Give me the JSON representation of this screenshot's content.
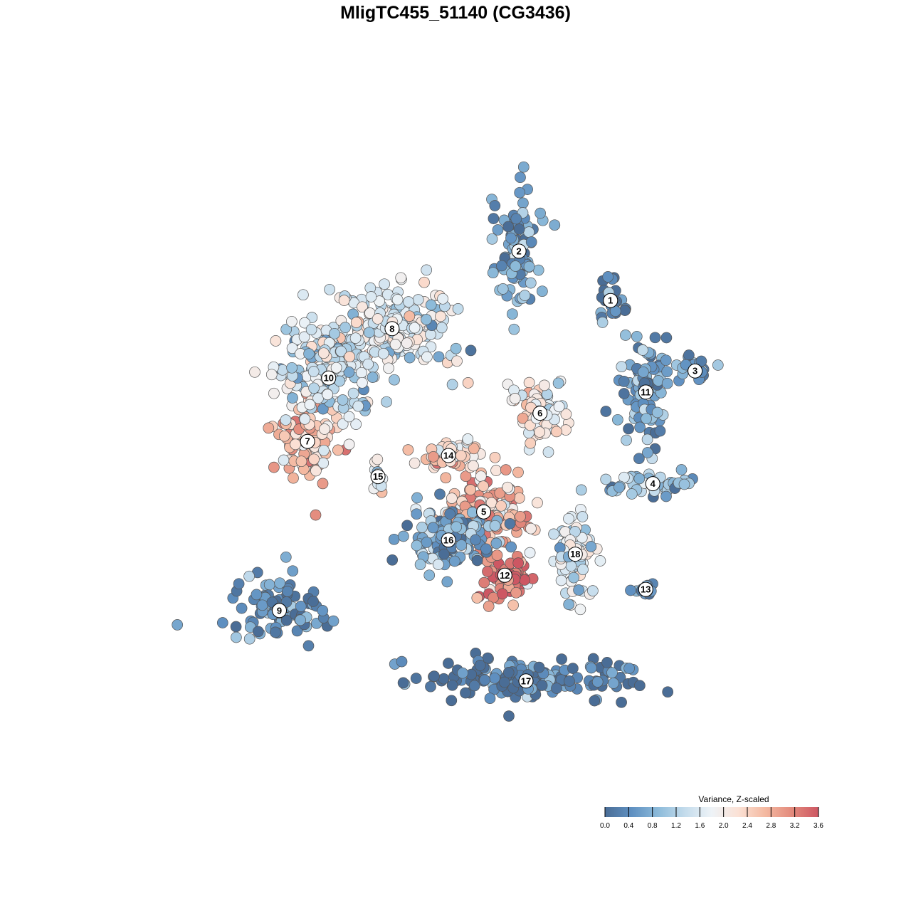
{
  "chart_data": {
    "type": "scatter",
    "title": "MligTC455_51140 (CG3436)",
    "xlabel": "",
    "ylabel": "",
    "grid": false,
    "axes_shown": false,
    "legend": {
      "title": "Variance, Z-scaled",
      "placement": "bottom-right",
      "range": [
        0.0,
        3.6
      ],
      "ticks": [
        "0.0",
        "0.4",
        "0.8",
        "1.2",
        "1.6",
        "2.0",
        "2.4",
        "2.8",
        "3.2",
        "3.6"
      ],
      "colors": [
        "#4a6d96",
        "#5f90c1",
        "#8dbbda",
        "#c4dcec",
        "#eef3f7",
        "#fbe1d5",
        "#f4b9a1",
        "#e38a7c",
        "#cd5763"
      ]
    },
    "clusters": [
      {
        "label": "1",
        "x": 0.72,
        "y": 0.72,
        "mean": 0.3
      },
      {
        "label": "2",
        "x": 0.59,
        "y": 0.79,
        "mean": 0.6
      },
      {
        "label": "3",
        "x": 0.84,
        "y": 0.62,
        "mean": 0.5
      },
      {
        "label": "4",
        "x": 0.78,
        "y": 0.46,
        "mean": 0.9
      },
      {
        "label": "5",
        "x": 0.54,
        "y": 0.42,
        "mean": 2.6
      },
      {
        "label": "6",
        "x": 0.62,
        "y": 0.56,
        "mean": 2.0
      },
      {
        "label": "7",
        "x": 0.29,
        "y": 0.52,
        "mean": 2.6
      },
      {
        "label": "8",
        "x": 0.41,
        "y": 0.68,
        "mean": 1.6
      },
      {
        "label": "9",
        "x": 0.25,
        "y": 0.28,
        "mean": 0.4
      },
      {
        "label": "10",
        "x": 0.32,
        "y": 0.61,
        "mean": 1.4
      },
      {
        "label": "11",
        "x": 0.77,
        "y": 0.59,
        "mean": 0.6
      },
      {
        "label": "12",
        "x": 0.57,
        "y": 0.33,
        "mean": 3.4
      },
      {
        "label": "13",
        "x": 0.77,
        "y": 0.31,
        "mean": 0.4
      },
      {
        "label": "14",
        "x": 0.49,
        "y": 0.5,
        "mean": 2.2
      },
      {
        "label": "15",
        "x": 0.39,
        "y": 0.47,
        "mean": 1.9
      },
      {
        "label": "16",
        "x": 0.49,
        "y": 0.38,
        "mean": 0.7
      },
      {
        "label": "17",
        "x": 0.6,
        "y": 0.18,
        "mean": 0.1
      },
      {
        "label": "18",
        "x": 0.67,
        "y": 0.36,
        "mean": 1.6
      }
    ]
  }
}
